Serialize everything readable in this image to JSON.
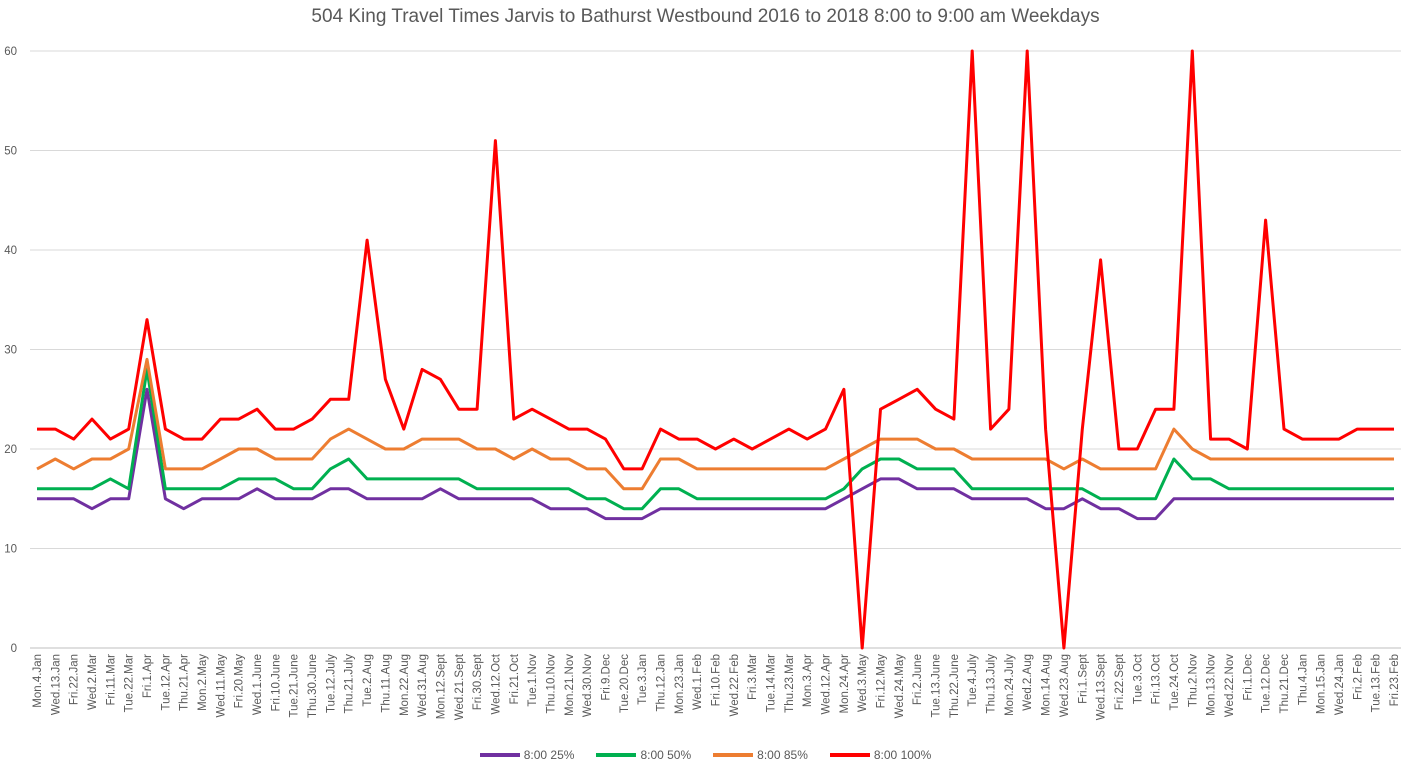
{
  "chart_data": {
    "type": "line",
    "title": "504 King Travel Times Jarvis to Bathurst Westbound 2016 to 2018 8:00 to 9:00 am Weekdays",
    "xlabel": "",
    "ylabel": "",
    "ylim": [
      0,
      60
    ],
    "yticks": [
      0,
      10,
      20,
      30,
      40,
      50,
      60
    ],
    "grid": true,
    "legend_position": "bottom",
    "categories": [
      "Mon.4.Jan",
      "Wed.13.Jan",
      "Fri.22.Jan",
      "Wed.2.Mar",
      "Fri.11.Mar",
      "Tue.22.Mar",
      "Fri.1.Apr",
      "Tue.12.Apr",
      "Thu.21.Apr",
      "Mon.2.May",
      "Wed.11.May",
      "Fri.20.May",
      "Wed.1.June",
      "Fri.10.June",
      "Tue.21.June",
      "Thu.30.June",
      "Tue.12.July",
      "Thu.21.July",
      "Tue.2.Aug",
      "Thu.11.Aug",
      "Mon.22.Aug",
      "Wed.31.Aug",
      "Mon.12.Sept",
      "Wed.21.Sept",
      "Fri.30.Sept",
      "Wed.12.Oct",
      "Fri.21.Oct",
      "Tue.1.Nov",
      "Thu.10.Nov",
      "Mon.21.Nov",
      "Wed.30.Nov",
      "Fri.9.Dec",
      "Tue.20.Dec",
      "Tue.3.Jan",
      "Thu.12.Jan",
      "Mon.23.Jan",
      "Wed.1.Feb",
      "Fri.10.Feb",
      "Wed.22.Feb",
      "Fri.3.Mar",
      "Tue.14.Mar",
      "Thu.23.Mar",
      "Mon.3.Apr",
      "Wed.12.Apr",
      "Mon.24.Apr",
      "Wed.3.May",
      "Fri.12.May",
      "Wed.24.May",
      "Fri.2.June",
      "Tue.13.June",
      "Thu.22.June",
      "Tue.4.July",
      "Thu.13.July",
      "Mon.24.July",
      "Wed.2.Aug",
      "Mon.14.Aug",
      "Wed.23.Aug",
      "Fri.1.Sept",
      "Wed.13.Sept",
      "Fri.22.Sept",
      "Tue.3.Oct",
      "Fri.13.Oct",
      "Tue.24.Oct",
      "Thu.2.Nov",
      "Mon.13.Nov",
      "Wed.22.Nov",
      "Fri.1.Dec",
      "Tue.12.Dec",
      "Thu.21.Dec",
      "Thu.4.Jan",
      "Mon.15.Jan",
      "Wed.24.Jan",
      "Fri.2.Feb",
      "Tue.13.Feb",
      "Fri.23.Feb"
    ],
    "series": [
      {
        "name": "8:00 25%",
        "color": "#7030a0",
        "values": [
          15,
          15,
          15,
          14,
          15,
          15,
          26,
          15,
          14,
          15,
          15,
          15,
          16,
          15,
          15,
          15,
          16,
          16,
          15,
          15,
          15,
          15,
          16,
          15,
          15,
          15,
          15,
          15,
          14,
          14,
          14,
          13,
          13,
          13,
          14,
          14,
          14,
          14,
          14,
          14,
          14,
          14,
          14,
          14,
          15,
          16,
          17,
          17,
          16,
          16,
          16,
          15,
          15,
          15,
          15,
          14,
          14,
          15,
          14,
          14,
          13,
          13,
          15,
          15,
          15,
          15,
          15,
          15,
          15,
          15,
          15,
          15,
          15,
          15,
          15
        ]
      },
      {
        "name": "8:00 50%",
        "color": "#00b050",
        "values": [
          16,
          16,
          16,
          16,
          17,
          16,
          28,
          16,
          16,
          16,
          16,
          17,
          17,
          17,
          16,
          16,
          18,
          19,
          17,
          17,
          17,
          17,
          17,
          17,
          16,
          16,
          16,
          16,
          16,
          16,
          15,
          15,
          14,
          14,
          16,
          16,
          15,
          15,
          15,
          15,
          15,
          15,
          15,
          15,
          16,
          18,
          19,
          19,
          18,
          18,
          18,
          16,
          16,
          16,
          16,
          16,
          16,
          16,
          15,
          15,
          15,
          15,
          19,
          17,
          17,
          16,
          16,
          16,
          16,
          16,
          16,
          16,
          16,
          16,
          16
        ]
      },
      {
        "name": "8:00 85%",
        "color": "#ed7d31",
        "values": [
          18,
          19,
          18,
          19,
          19,
          20,
          29,
          18,
          18,
          18,
          19,
          20,
          20,
          19,
          19,
          19,
          21,
          22,
          21,
          20,
          20,
          21,
          21,
          21,
          20,
          20,
          19,
          20,
          19,
          19,
          18,
          18,
          16,
          16,
          19,
          19,
          18,
          18,
          18,
          18,
          18,
          18,
          18,
          18,
          19,
          20,
          21,
          21,
          21,
          20,
          20,
          19,
          19,
          19,
          19,
          19,
          18,
          19,
          18,
          18,
          18,
          18,
          22,
          20,
          19,
          19,
          19,
          19,
          19,
          19,
          19,
          19,
          19,
          19,
          19
        ]
      },
      {
        "name": "8:00 100%",
        "color": "#ff0000",
        "values": [
          22,
          22,
          21,
          23,
          21,
          22,
          33,
          22,
          21,
          21,
          23,
          23,
          24,
          22,
          22,
          23,
          25,
          25,
          41,
          27,
          22,
          28,
          27,
          24,
          24,
          51,
          23,
          24,
          23,
          22,
          22,
          21,
          18,
          18,
          22,
          21,
          21,
          20,
          21,
          20,
          21,
          22,
          21,
          22,
          26,
          0,
          24,
          25,
          26,
          24,
          23,
          60,
          22,
          24,
          60,
          22,
          0,
          22,
          39,
          20,
          20,
          24,
          24,
          60,
          21,
          21,
          20,
          43,
          22,
          21,
          21,
          21,
          22,
          22,
          22
        ]
      }
    ]
  }
}
